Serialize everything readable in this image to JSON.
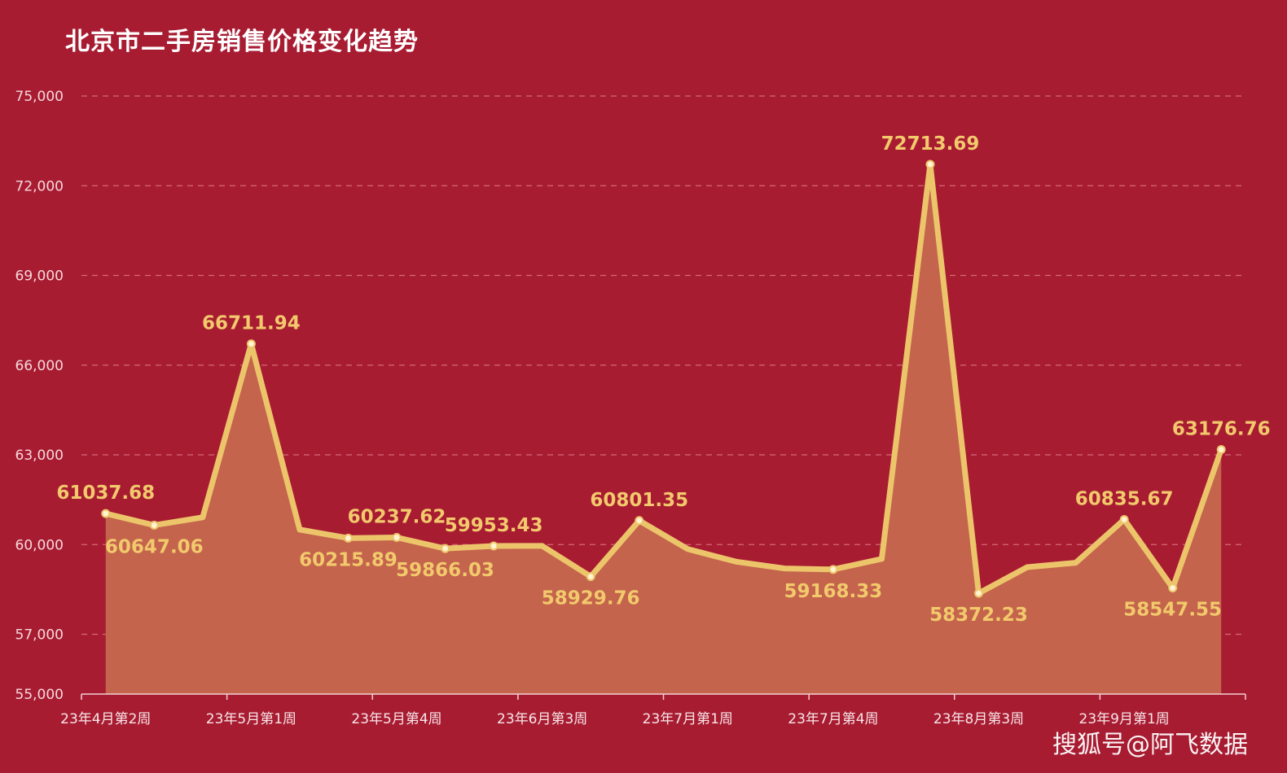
{
  "chart_data": {
    "type": "area",
    "title": "北京市二手房销售价格变化趋势",
    "xlabel": "",
    "ylabel": "",
    "ylim": [
      55000,
      75000
    ],
    "y_ticks": [
      "55,000",
      "57,000",
      "60,000",
      "63,000",
      "66,000",
      "69,000",
      "72,000",
      "75,000"
    ],
    "y_tick_values": [
      55000,
      57000,
      60000,
      63000,
      66000,
      69000,
      72000,
      75000
    ],
    "grid": true,
    "legend": "none",
    "x_tick_labels": [
      {
        "index": 0,
        "label": "23年4月第2周"
      },
      {
        "index": 3,
        "label": "23年5月第1周"
      },
      {
        "index": 6,
        "label": "23年5月第4周"
      },
      {
        "index": 9,
        "label": "23年6月第3周"
      },
      {
        "index": 12,
        "label": "23年7月第1周"
      },
      {
        "index": 15,
        "label": "23年7月第4周"
      },
      {
        "index": 18,
        "label": "23年8月第3周"
      },
      {
        "index": 21,
        "label": "23年9月第1周"
      }
    ],
    "values": [
      61037.68,
      60647.06,
      60910,
      66711.94,
      60500,
      60215.89,
      60237.62,
      59866.03,
      59953.43,
      59955,
      58929.76,
      60801.35,
      59850,
      59427,
      59200,
      59168.33,
      59520,
      72713.69,
      58372.23,
      59245,
      59390,
      60835.67,
      58547.55,
      63176.76
    ],
    "data_labels": [
      {
        "index": 0,
        "text": "61037.68",
        "position": "above"
      },
      {
        "index": 1,
        "text": "60647.06",
        "position": "below"
      },
      {
        "index": 3,
        "text": "66711.94",
        "position": "above"
      },
      {
        "index": 5,
        "text": "60215.89",
        "position": "below"
      },
      {
        "index": 6,
        "text": "60237.62",
        "position": "above"
      },
      {
        "index": 7,
        "text": "59866.03",
        "position": "below"
      },
      {
        "index": 8,
        "text": "59953.43",
        "position": "above"
      },
      {
        "index": 10,
        "text": "58929.76",
        "position": "below"
      },
      {
        "index": 11,
        "text": "60801.35",
        "position": "above"
      },
      {
        "index": 15,
        "text": "59168.33",
        "position": "below"
      },
      {
        "index": 17,
        "text": "72713.69",
        "position": "above"
      },
      {
        "index": 18,
        "text": "58372.23",
        "position": "below"
      },
      {
        "index": 21,
        "text": "60835.67",
        "position": "above"
      },
      {
        "index": 22,
        "text": "58547.55",
        "position": "below"
      },
      {
        "index": 23,
        "text": "63176.76",
        "position": "above"
      }
    ],
    "colors": {
      "background": "#a81c32",
      "line": "#ecc56b",
      "area": "#c4644c",
      "label": "#f2c96c",
      "grid": "#d46a78"
    }
  },
  "watermark": "搜狐号@阿飞数据"
}
